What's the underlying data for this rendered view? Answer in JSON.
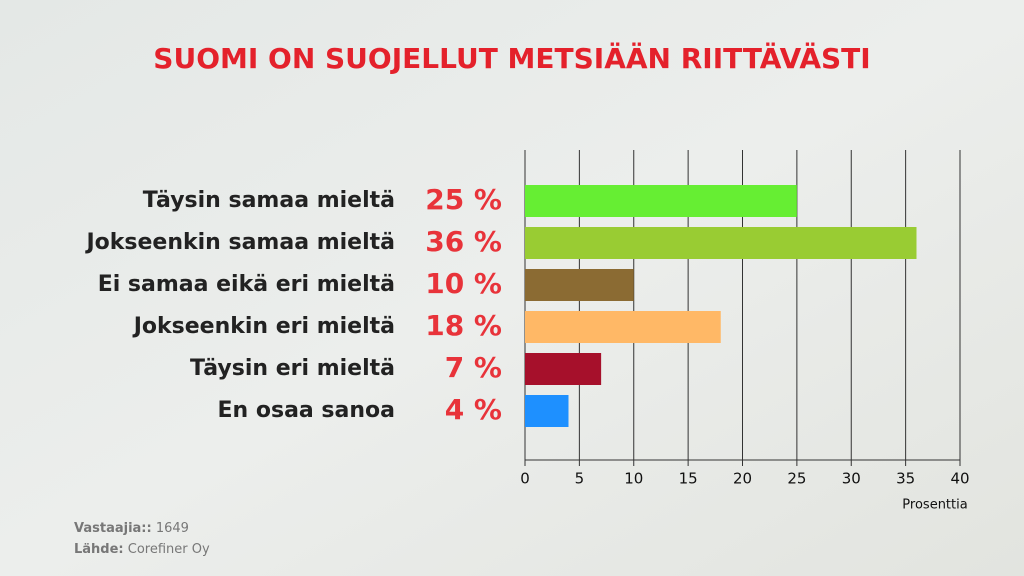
{
  "chart_data": {
    "type": "bar",
    "orientation": "horizontal",
    "title": "SUOMI ON SUOJELLUT METSIÄÄN RIITTÄVÄSTI",
    "categories": [
      "Täysin samaa mieltä",
      "Jokseenkin samaa mieltä",
      "Ei samaa eikä eri mieltä",
      "Jokseenkin eri mieltä",
      "Täysin eri mieltä",
      "En osaa sanoa"
    ],
    "values": [
      25,
      36,
      10,
      18,
      7,
      4
    ],
    "value_labels": [
      "25 %",
      "36 %",
      "10 %",
      "18 %",
      "7 %",
      "4 %"
    ],
    "colors": [
      "#66ee33",
      "#99cc33",
      "#8b6b33",
      "#ffb866",
      "#a6102b",
      "#1e90ff"
    ],
    "xlim": [
      0,
      40
    ],
    "xticks": [
      0,
      5,
      10,
      15,
      20,
      25,
      30,
      35,
      40
    ],
    "xlabel": "Prosenttia",
    "grid": true
  },
  "footer": {
    "respondents_label": "Vastaajia::",
    "respondents": 1649,
    "source_label": "Lähde:",
    "source": "Corefiner Oy"
  }
}
